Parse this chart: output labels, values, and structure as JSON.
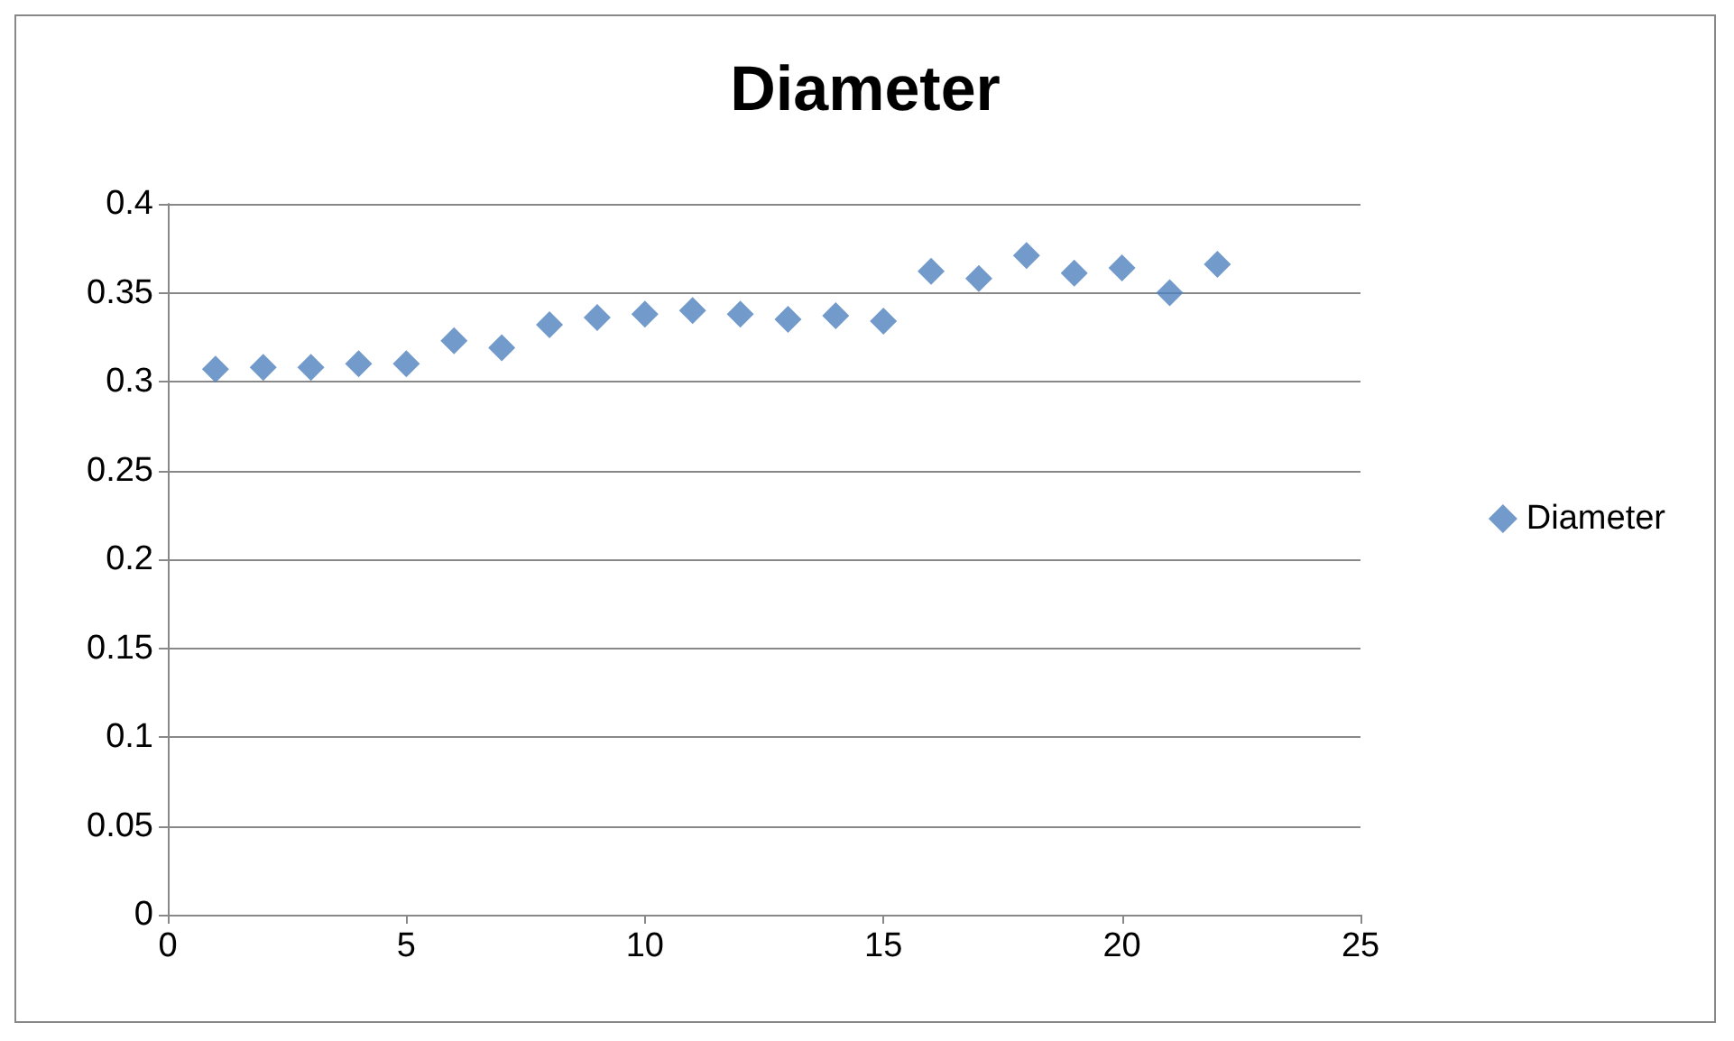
{
  "chart_data": {
    "type": "scatter",
    "title": "Diameter",
    "x": [
      1,
      2,
      3,
      4,
      5,
      6,
      7,
      8,
      9,
      10,
      11,
      12,
      13,
      14,
      15,
      16,
      17,
      18,
      19,
      20,
      21,
      22
    ],
    "series": [
      {
        "name": "Diameter",
        "color": "#4f81bd",
        "values": [
          0.307,
          0.308,
          0.308,
          0.31,
          0.31,
          0.323,
          0.319,
          0.332,
          0.336,
          0.338,
          0.34,
          0.338,
          0.335,
          0.337,
          0.334,
          0.362,
          0.358,
          0.371,
          0.361,
          0.364,
          0.35,
          0.366
        ]
      }
    ],
    "xlim": [
      0,
      25
    ],
    "xticks": [
      0,
      5,
      10,
      15,
      20,
      25
    ],
    "ylim": [
      0,
      0.4
    ],
    "yticks": [
      0,
      0.05,
      0.1,
      0.15,
      0.2,
      0.25,
      0.3,
      0.35,
      0.4
    ],
    "grid": "y",
    "legend": "right",
    "marker": "diamond"
  }
}
